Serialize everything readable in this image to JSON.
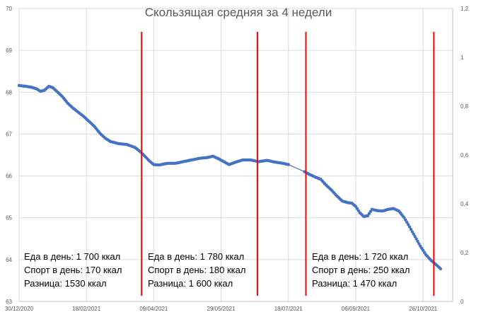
{
  "chart_data": {
    "type": "line",
    "title": "Скользящая средняя за 4 недели",
    "y_left": {
      "min": 63,
      "max": 70,
      "ticks": [
        "63",
        "64",
        "65",
        "66",
        "67",
        "68",
        "69",
        "70"
      ]
    },
    "y_right": {
      "min": 0,
      "max": 1.2,
      "ticks": [
        "0",
        "0,2",
        "0,4",
        "0,6",
        "0,8",
        "1",
        "1,2"
      ]
    },
    "x_axis": {
      "start": "2020-12-30",
      "end": "2021-11-17",
      "ticks": [
        {
          "date": "2020-12-30",
          "label": "30/12/2020"
        },
        {
          "date": "2021-02-18",
          "label": "18/02/2021"
        },
        {
          "date": "2021-04-09",
          "label": "09/04/2021"
        },
        {
          "date": "2021-05-29",
          "label": "29/05/2021"
        },
        {
          "date": "2021-07-18",
          "label": "18/07/2021"
        },
        {
          "date": "2021-09-06",
          "label": "06/09/2021"
        },
        {
          "date": "2021-10-26",
          "label": "26/10/2021"
        }
      ]
    },
    "series": [
      {
        "color": "#4472c4",
        "points": [
          [
            "2020-12-30",
            68.16
          ],
          [
            "2021-01-04",
            68.14
          ],
          [
            "2021-01-08",
            68.12
          ],
          [
            "2021-01-12",
            68.08
          ],
          [
            "2021-01-15",
            68.02
          ],
          [
            "2021-01-18",
            68.05
          ],
          [
            "2021-01-21",
            68.14
          ],
          [
            "2021-01-24",
            68.11
          ],
          [
            "2021-01-27",
            68.02
          ],
          [
            "2021-01-31",
            67.9
          ],
          [
            "2021-02-04",
            67.74
          ],
          [
            "2021-02-08",
            67.62
          ],
          [
            "2021-02-12",
            67.52
          ],
          [
            "2021-02-16",
            67.42
          ],
          [
            "2021-02-20",
            67.3
          ],
          [
            "2021-02-24",
            67.18
          ],
          [
            "2021-02-28",
            67.02
          ],
          [
            "2021-03-04",
            66.9
          ],
          [
            "2021-03-08",
            66.82
          ],
          [
            "2021-03-14",
            66.77
          ],
          [
            "2021-03-20",
            66.75
          ],
          [
            "2021-03-26",
            66.68
          ],
          [
            "2021-03-30",
            66.58
          ],
          [
            "2021-04-03",
            66.45
          ],
          [
            "2021-04-06",
            66.35
          ],
          [
            "2021-04-09",
            66.27
          ],
          [
            "2021-04-13",
            66.26
          ],
          [
            "2021-04-19",
            66.3
          ],
          [
            "2021-04-25",
            66.3
          ],
          [
            "2021-05-01",
            66.34
          ],
          [
            "2021-05-07",
            66.38
          ],
          [
            "2021-05-13",
            66.42
          ],
          [
            "2021-05-19",
            66.44
          ],
          [
            "2021-05-23",
            66.47
          ],
          [
            "2021-05-27",
            66.41
          ],
          [
            "2021-05-31",
            66.34
          ],
          [
            "2021-06-04",
            66.27
          ],
          [
            "2021-06-08",
            66.32
          ],
          [
            "2021-06-14",
            66.38
          ],
          [
            "2021-06-20",
            66.38
          ],
          [
            "2021-06-26",
            66.34
          ],
          [
            "2021-07-02",
            66.37
          ],
          [
            "2021-07-08",
            66.33
          ],
          [
            "2021-07-14",
            66.3
          ],
          [
            "2021-07-18",
            66.27
          ],
          [
            "2021-07-30",
            66.1
          ],
          [
            "2021-08-03",
            66.03
          ],
          [
            "2021-08-07",
            65.97
          ],
          [
            "2021-08-11",
            65.92
          ],
          [
            "2021-08-15",
            65.78
          ],
          [
            "2021-08-19",
            65.66
          ],
          [
            "2021-08-23",
            65.52
          ],
          [
            "2021-08-27",
            65.4
          ],
          [
            "2021-08-31",
            65.36
          ],
          [
            "2021-09-03",
            65.35
          ],
          [
            "2021-09-06",
            65.27
          ],
          [
            "2021-09-09",
            65.12
          ],
          [
            "2021-09-12",
            65.03
          ],
          [
            "2021-09-15",
            65.05
          ],
          [
            "2021-09-18",
            65.2
          ],
          [
            "2021-09-22",
            65.17
          ],
          [
            "2021-09-26",
            65.16
          ],
          [
            "2021-09-30",
            65.2
          ],
          [
            "2021-10-04",
            65.22
          ],
          [
            "2021-10-08",
            65.16
          ],
          [
            "2021-10-12",
            65.0
          ],
          [
            "2021-10-16",
            64.78
          ],
          [
            "2021-10-20",
            64.55
          ],
          [
            "2021-10-24",
            64.32
          ],
          [
            "2021-10-28",
            64.12
          ],
          [
            "2021-11-01",
            63.98
          ],
          [
            "2021-11-05",
            63.87
          ],
          [
            "2021-11-08",
            63.78
          ]
        ]
      }
    ],
    "markers": {
      "color": "#ff0000",
      "dates": [
        "2021-03-31",
        "2021-06-25",
        "2021-07-31",
        "2021-11-03"
      ]
    },
    "annotations": [
      {
        "lines": [
          "Еда в день: 1 700 ккал",
          "Спорт в день: 170 ккал",
          "Разница: 1530 ккал"
        ]
      },
      {
        "lines": [
          "Еда в день: 1 780 ккал",
          "Спорт в день: 180 ккал",
          "Разница: 1 600 ккал"
        ]
      },
      {
        "lines": [
          "Еда в день: 1 720 ккал",
          "Спорт в день: 250 ккал",
          "Разница: 1 470 ккал"
        ]
      }
    ]
  }
}
